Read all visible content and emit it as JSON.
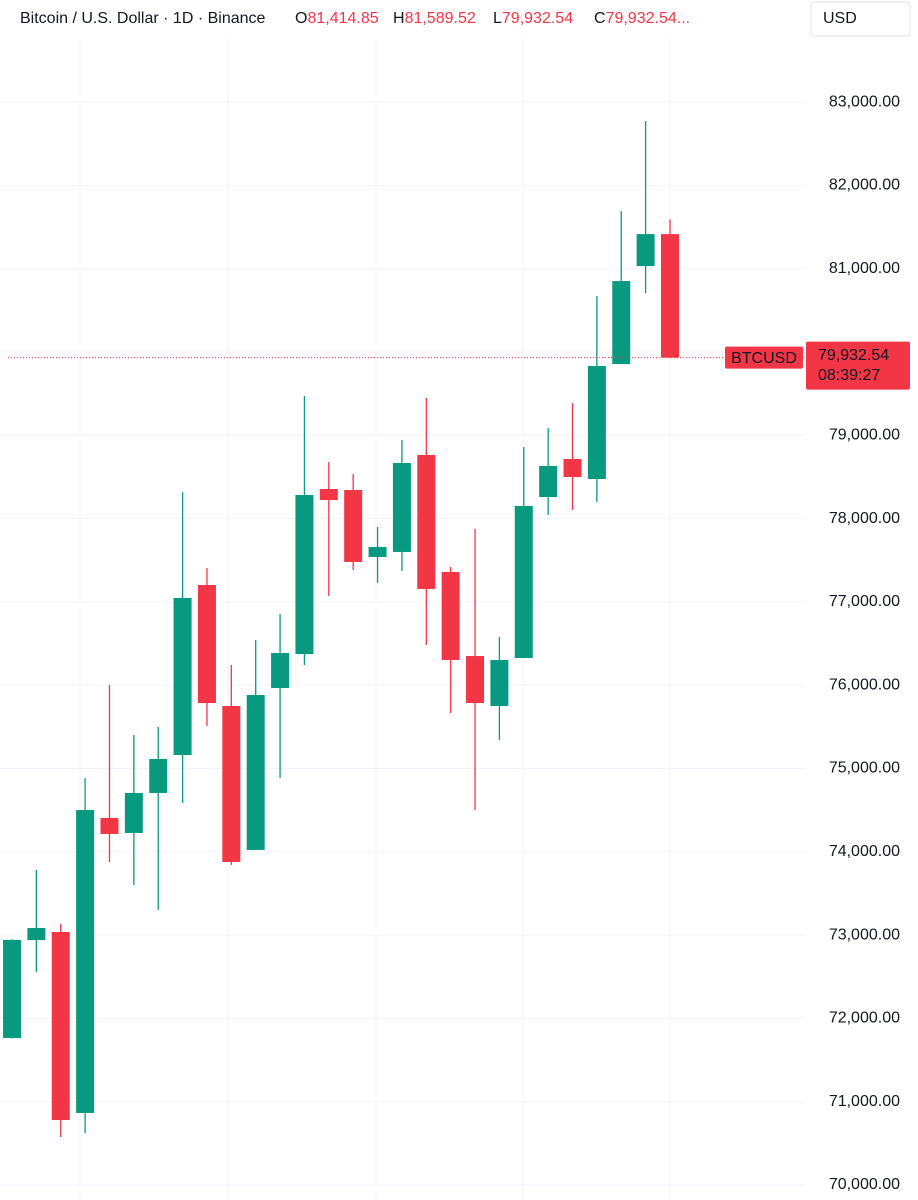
{
  "chart_data": {
    "type": "candlestick",
    "title": "Bitcoin / U.S. Dollar · 1D · Binance",
    "ohlc_legend": [
      {
        "key": "O",
        "text": "81,414.85"
      },
      {
        "key": "H",
        "text": "81,589.52"
      },
      {
        "key": "L",
        "text": "79,932.54"
      },
      {
        "key": "C",
        "text": "79,932.54..."
      }
    ],
    "currency": "USD",
    "up_color": "#089981",
    "down_color": "#f23645",
    "categories": [
      null,
      null,
      null,
      null,
      null,
      null,
      null,
      null,
      null,
      null,
      null,
      null,
      null,
      null,
      null,
      null,
      null,
      null,
      null,
      null,
      null,
      null,
      null,
      null,
      null,
      null,
      null,
      null
    ],
    "open": [
      71765,
      72940,
      73037,
      70865,
      74406,
      74226,
      74706,
      75162,
      77203,
      75750,
      74022,
      75966,
      76374,
      78355,
      78343,
      77539,
      77599,
      78763,
      77359,
      76350,
      75750,
      76326,
      78259,
      78715,
      78475,
      79855,
      81031,
      81414.85
    ],
    "high": [
      72950,
      73782,
      73134,
      74886,
      76002,
      75402,
      75498,
      78319,
      77407,
      76242,
      76542,
      76854,
      79471,
      78679,
      78535,
      77899,
      78943,
      79447,
      77419,
      77875,
      76578,
      78859,
      79087,
      79387,
      80671,
      81691,
      82772,
      81589.52
    ],
    "low": [
      71760,
      72557,
      70577,
      70625,
      73878,
      73602,
      73302,
      74586,
      75510,
      73842,
      74022,
      74886,
      76242,
      77070,
      77383,
      77227,
      77371,
      76482,
      75666,
      74502,
      75342,
      76326,
      78043,
      78103,
      78199,
      79855,
      80707,
      79932.54
    ],
    "close": [
      72942,
      73085,
      70780,
      74502,
      74214,
      74706,
      75114,
      77047,
      75786,
      73878,
      75882,
      76386,
      78283,
      78223,
      77479,
      77659,
      78667,
      77155,
      76302,
      75786,
      76302,
      78151,
      78631,
      78499,
      79831,
      80851,
      81415,
      79932.54
    ],
    "ylim": [
      69820,
      84225
    ],
    "yticks": [
      {
        "value": 70000,
        "label": "70,000.00"
      },
      {
        "value": 71000,
        "label": "71,000.00"
      },
      {
        "value": 72000,
        "label": "72,000.00"
      },
      {
        "value": 73000,
        "label": "73,000.00"
      },
      {
        "value": 74000,
        "label": "74,000.00"
      },
      {
        "value": 75000,
        "label": "75,000.00"
      },
      {
        "value": 76000,
        "label": "76,000.00"
      },
      {
        "value": 77000,
        "label": "77,000.00"
      },
      {
        "value": 78000,
        "label": "78,000.00"
      },
      {
        "value": 79000,
        "label": "79,000.00"
      },
      {
        "value": 80000,
        "label": "80,000.00"
      },
      {
        "value": 81000,
        "label": "81,000.00"
      },
      {
        "value": 82000,
        "label": "82,000.00"
      },
      {
        "value": 83000,
        "label": "83,000.00"
      }
    ],
    "grid": true,
    "last_price": {
      "symbol": "BTCUSD",
      "value": 79932.54,
      "label": "79,932.54",
      "countdown": "08:39:27"
    }
  }
}
